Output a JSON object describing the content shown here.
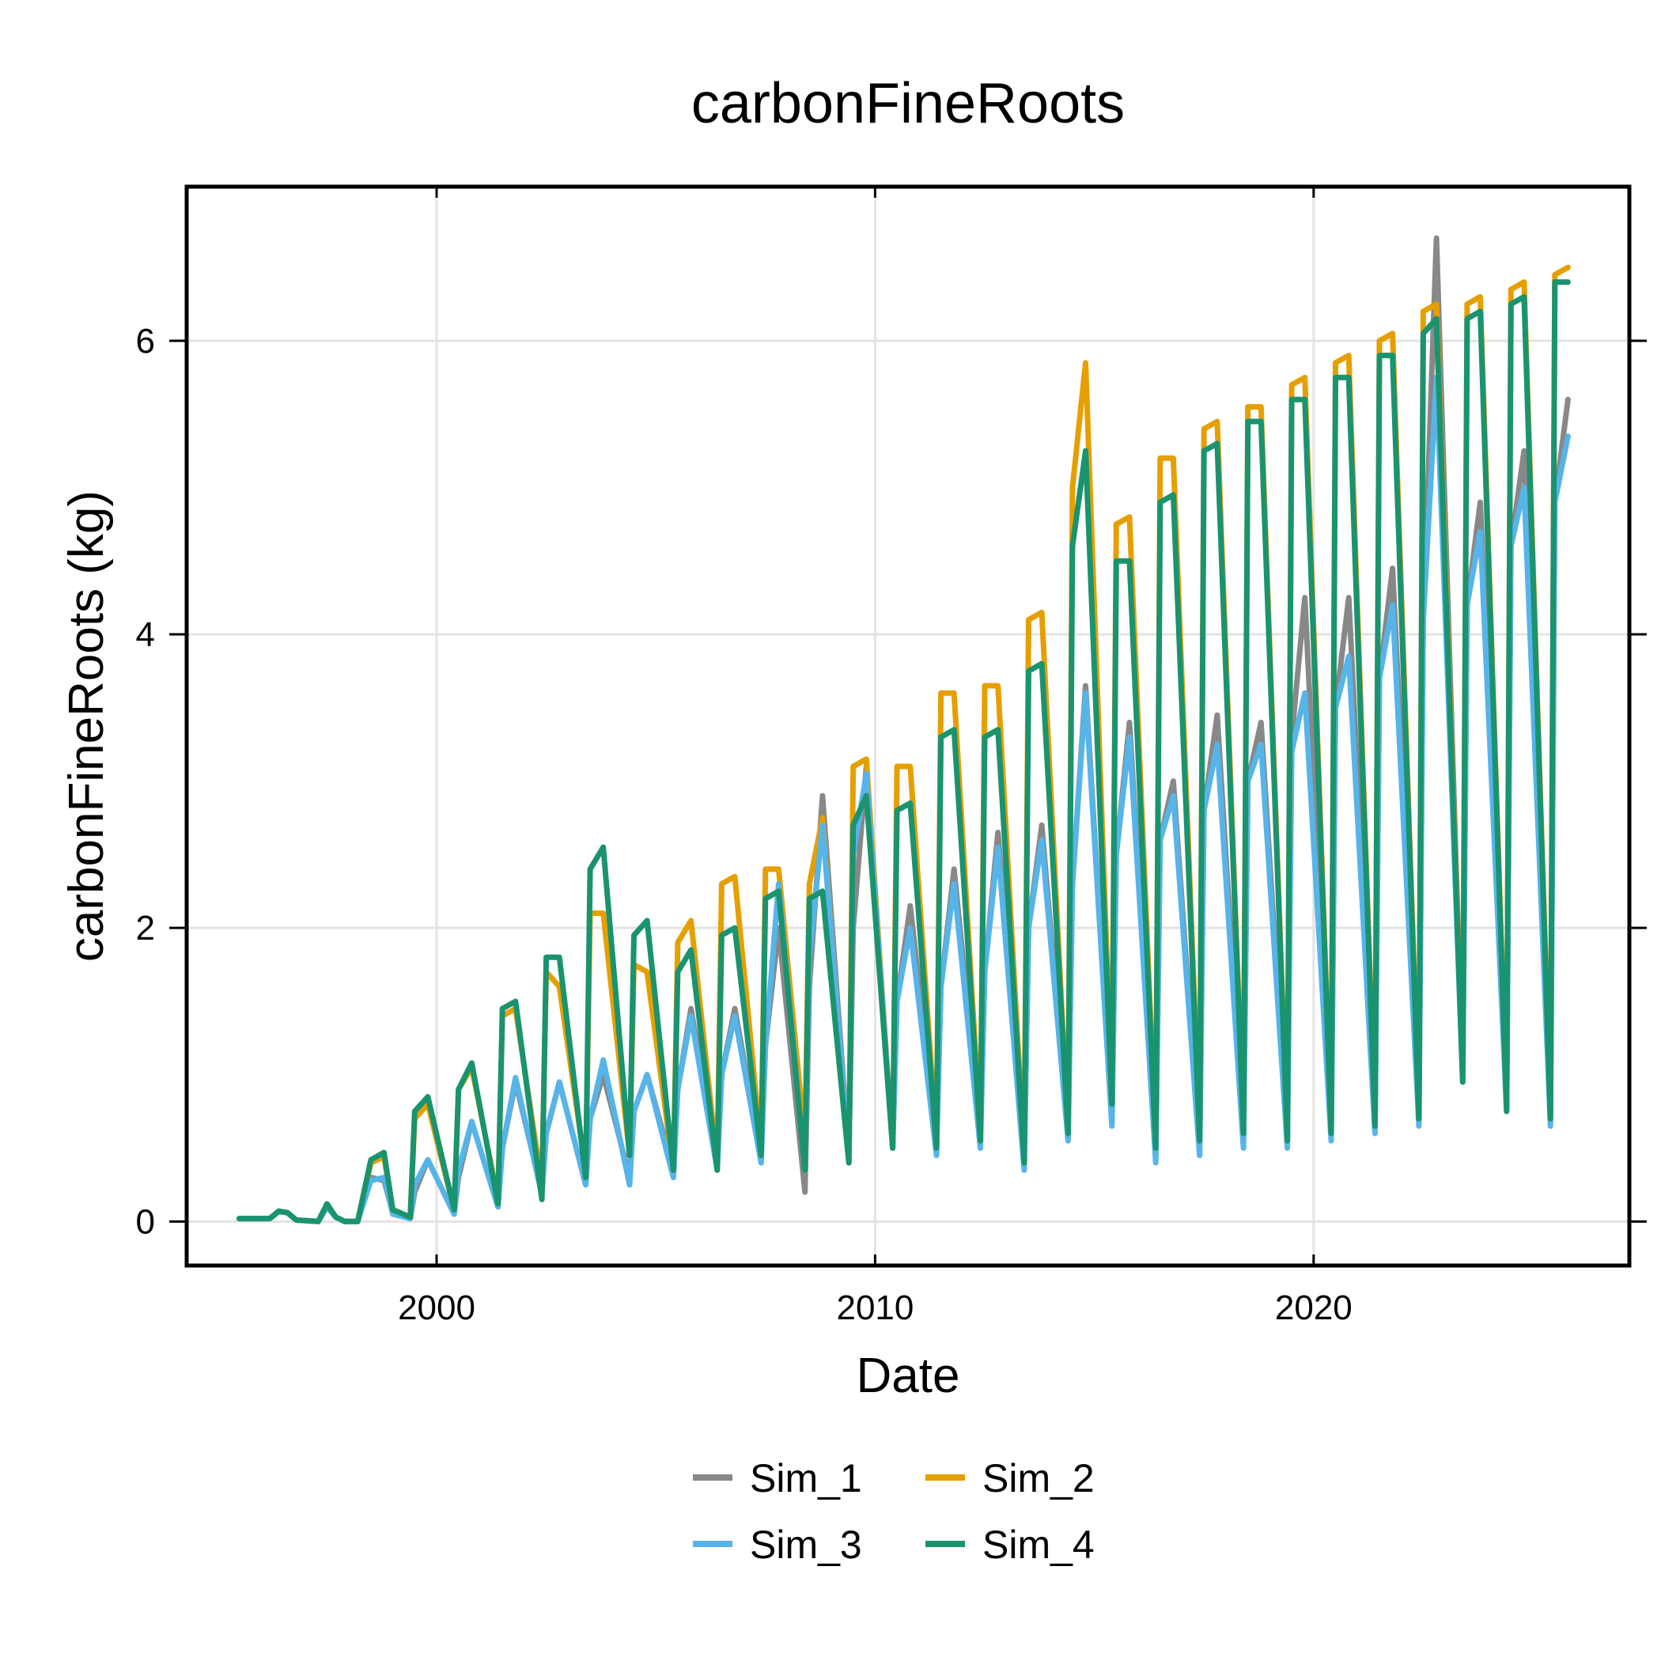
{
  "chart_data": {
    "type": "line",
    "title": "carbonFineRoots",
    "xlabel": "Date",
    "ylabel": "carbonFineRoots (kg)",
    "xlim": [
      1994.3,
      2027.2
    ],
    "ylim": [
      -0.3,
      7.05
    ],
    "xticks": [
      2000,
      2010,
      2020
    ],
    "x_tick_labels": [
      "2000",
      "2010",
      "2020"
    ],
    "yticks": [
      0,
      2,
      4,
      6
    ],
    "y_tick_labels": [
      "0",
      "2",
      "4",
      "6"
    ],
    "grid": true,
    "legend_position": "bottom",
    "series": [
      {
        "name": "Sim_1",
        "color": "#888888",
        "x": [
          1995.5,
          1996.2,
          1996.4,
          1996.6,
          1996.8,
          1997.3,
          1997.5,
          1997.7,
          1997.9,
          1998.2,
          1998.5,
          1998.8,
          1999.0,
          1999.4,
          1999.5,
          1999.8,
          2000.4,
          2000.5,
          2000.8,
          2001.4,
          2001.5,
          2001.8,
          2002.4,
          2002.5,
          2002.8,
          2003.4,
          2003.5,
          2003.8,
          2004.4,
          2004.5,
          2004.8,
          2005.4,
          2005.5,
          2005.8,
          2006.4,
          2006.5,
          2006.8,
          2007.4,
          2007.5,
          2007.8,
          2008.4,
          2008.5,
          2008.8,
          2009.4,
          2009.5,
          2009.8,
          2010.4,
          2010.5,
          2010.8,
          2011.4,
          2011.5,
          2011.8,
          2012.4,
          2012.5,
          2012.8,
          2013.4,
          2013.5,
          2013.8,
          2014.4,
          2014.5,
          2014.8,
          2015.4,
          2015.5,
          2015.8,
          2016.4,
          2016.5,
          2016.8,
          2017.4,
          2017.5,
          2017.8,
          2018.4,
          2018.5,
          2018.8,
          2019.4,
          2019.5,
          2019.8,
          2020.4,
          2020.5,
          2020.8,
          2021.4,
          2021.5,
          2021.8,
          2022.4,
          2022.5,
          2022.8,
          2023.4,
          2023.5,
          2023.8,
          2024.4,
          2024.5,
          2024.8,
          2025.4,
          2025.5,
          2025.8
        ],
        "y": [
          0.02,
          0.02,
          0.07,
          0.06,
          0.01,
          0.0,
          0.1,
          0.03,
          0.0,
          0.0,
          0.3,
          0.28,
          0.06,
          0.02,
          0.2,
          0.42,
          0.05,
          0.3,
          0.68,
          0.1,
          0.5,
          0.95,
          0.2,
          0.6,
          0.95,
          0.25,
          0.7,
          1.0,
          0.3,
          0.75,
          1.0,
          0.35,
          0.9,
          1.45,
          0.4,
          1.0,
          1.45,
          0.45,
          1.2,
          2.0,
          0.2,
          1.6,
          2.9,
          0.45,
          2.0,
          3.1,
          0.5,
          1.5,
          2.15,
          0.55,
          1.6,
          2.4,
          0.6,
          1.7,
          2.65,
          0.45,
          2.0,
          2.7,
          0.6,
          2.3,
          3.65,
          0.7,
          2.5,
          3.4,
          0.45,
          2.6,
          3.0,
          0.5,
          2.8,
          3.45,
          0.55,
          3.0,
          3.4,
          0.55,
          3.3,
          4.25,
          0.6,
          3.5,
          4.25,
          0.65,
          3.7,
          4.45,
          0.7,
          4.1,
          6.7,
          1.0,
          4.2,
          4.9,
          0.8,
          4.6,
          5.25,
          0.7,
          4.9,
          5.6
        ]
      },
      {
        "name": "Sim_2",
        "color": "#E69F00",
        "x": [
          1995.5,
          1996.2,
          1996.4,
          1996.6,
          1996.8,
          1997.3,
          1997.5,
          1997.7,
          1997.9,
          1998.2,
          1998.5,
          1998.8,
          1999.0,
          1999.4,
          1999.5,
          1999.8,
          2000.4,
          2000.5,
          2000.8,
          2001.4,
          2001.5,
          2001.8,
          2002.4,
          2002.5,
          2002.8,
          2003.4,
          2003.5,
          2003.8,
          2004.4,
          2004.5,
          2004.8,
          2005.4,
          2005.5,
          2005.8,
          2006.4,
          2006.5,
          2006.8,
          2007.4,
          2007.5,
          2007.8,
          2008.4,
          2008.5,
          2008.8,
          2009.4,
          2009.5,
          2009.8,
          2010.4,
          2010.5,
          2010.8,
          2011.4,
          2011.5,
          2011.8,
          2012.4,
          2012.5,
          2012.8,
          2013.4,
          2013.5,
          2013.8,
          2014.4,
          2014.5,
          2014.8,
          2015.4,
          2015.5,
          2015.8,
          2016.4,
          2016.5,
          2016.8,
          2017.4,
          2017.5,
          2017.8,
          2018.4,
          2018.5,
          2018.8,
          2019.4,
          2019.5,
          2019.8,
          2020.4,
          2020.5,
          2020.8,
          2021.4,
          2021.5,
          2021.8,
          2022.4,
          2022.5,
          2022.8,
          2023.4,
          2023.5,
          2023.8,
          2024.4,
          2024.5,
          2024.8,
          2025.4,
          2025.5,
          2025.8
        ],
        "y": [
          0.02,
          0.02,
          0.07,
          0.06,
          0.01,
          0.0,
          0.12,
          0.03,
          0.0,
          0.0,
          0.4,
          0.44,
          0.08,
          0.03,
          0.7,
          0.8,
          0.08,
          0.9,
          1.05,
          0.15,
          1.4,
          1.45,
          0.25,
          1.7,
          1.6,
          0.35,
          2.1,
          2.1,
          0.45,
          1.75,
          1.7,
          0.35,
          1.9,
          2.05,
          0.4,
          2.3,
          2.35,
          0.5,
          2.4,
          2.4,
          0.55,
          2.3,
          2.75,
          0.4,
          3.1,
          3.15,
          0.5,
          3.1,
          3.1,
          0.55,
          3.6,
          3.6,
          0.6,
          3.65,
          3.65,
          0.45,
          4.1,
          4.15,
          0.6,
          5.0,
          5.85,
          0.85,
          4.75,
          4.8,
          0.55,
          5.2,
          5.2,
          0.6,
          5.4,
          5.45,
          0.65,
          5.55,
          5.55,
          0.6,
          5.7,
          5.75,
          0.65,
          5.85,
          5.9,
          0.7,
          6.0,
          6.05,
          0.75,
          6.2,
          6.25,
          1.0,
          6.25,
          6.3,
          0.8,
          6.35,
          6.4,
          0.75,
          6.45,
          6.5
        ]
      },
      {
        "name": "Sim_3",
        "color": "#56B4E9",
        "x": [
          1995.5,
          1996.2,
          1996.4,
          1996.6,
          1996.8,
          1997.3,
          1997.5,
          1997.7,
          1997.9,
          1998.2,
          1998.5,
          1998.8,
          1999.0,
          1999.4,
          1999.5,
          1999.8,
          2000.4,
          2000.5,
          2000.8,
          2001.4,
          2001.5,
          2001.8,
          2002.4,
          2002.5,
          2002.8,
          2003.4,
          2003.5,
          2003.8,
          2004.4,
          2004.5,
          2004.8,
          2005.4,
          2005.5,
          2005.8,
          2006.4,
          2006.5,
          2006.8,
          2007.4,
          2007.5,
          2007.8,
          2008.4,
          2008.5,
          2008.8,
          2009.4,
          2009.5,
          2009.8,
          2010.4,
          2010.5,
          2010.8,
          2011.4,
          2011.5,
          2011.8,
          2012.4,
          2012.5,
          2012.8,
          2013.4,
          2013.5,
          2013.8,
          2014.4,
          2014.5,
          2014.8,
          2015.4,
          2015.5,
          2015.8,
          2016.4,
          2016.5,
          2016.8,
          2017.4,
          2017.5,
          2017.8,
          2018.4,
          2018.5,
          2018.8,
          2019.4,
          2019.5,
          2019.8,
          2020.4,
          2020.5,
          2020.8,
          2021.4,
          2021.5,
          2021.8,
          2022.4,
          2022.5,
          2022.8,
          2023.4,
          2023.5,
          2023.8,
          2024.4,
          2024.5,
          2024.8,
          2025.4,
          2025.5,
          2025.8
        ],
        "y": [
          0.02,
          0.02,
          0.07,
          0.06,
          0.01,
          0.0,
          0.1,
          0.03,
          0.0,
          0.0,
          0.28,
          0.3,
          0.05,
          0.02,
          0.25,
          0.42,
          0.05,
          0.35,
          0.68,
          0.1,
          0.5,
          0.98,
          0.18,
          0.6,
          0.95,
          0.25,
          0.7,
          1.1,
          0.25,
          0.75,
          1.0,
          0.3,
          0.9,
          1.4,
          0.35,
          1.0,
          1.4,
          0.4,
          1.2,
          2.3,
          0.35,
          1.8,
          2.7,
          0.45,
          2.5,
          3.05,
          0.5,
          1.5,
          2.0,
          0.45,
          1.6,
          2.3,
          0.5,
          1.7,
          2.55,
          0.35,
          2.0,
          2.6,
          0.55,
          2.3,
          3.6,
          0.65,
          2.5,
          3.3,
          0.4,
          2.6,
          2.9,
          0.45,
          2.8,
          3.25,
          0.5,
          3.0,
          3.25,
          0.5,
          3.2,
          3.6,
          0.55,
          3.5,
          3.85,
          0.6,
          3.7,
          4.2,
          0.65,
          4.1,
          5.75,
          0.95,
          4.2,
          4.7,
          0.75,
          4.6,
          5.0,
          0.65,
          4.9,
          5.35
        ]
      },
      {
        "name": "Sim_4",
        "color": "#1A936F",
        "x": [
          1995.5,
          1996.2,
          1996.4,
          1996.6,
          1996.8,
          1997.3,
          1997.5,
          1997.7,
          1997.9,
          1998.2,
          1998.5,
          1998.8,
          1999.0,
          1999.4,
          1999.5,
          1999.8,
          2000.4,
          2000.5,
          2000.8,
          2001.4,
          2001.5,
          2001.8,
          2002.4,
          2002.5,
          2002.8,
          2003.4,
          2003.5,
          2003.8,
          2004.4,
          2004.5,
          2004.8,
          2005.4,
          2005.5,
          2005.8,
          2006.4,
          2006.5,
          2006.8,
          2007.4,
          2007.5,
          2007.8,
          2008.4,
          2008.5,
          2008.8,
          2009.4,
          2009.5,
          2009.8,
          2010.4,
          2010.5,
          2010.8,
          2011.4,
          2011.5,
          2011.8,
          2012.4,
          2012.5,
          2012.8,
          2013.4,
          2013.5,
          2013.8,
          2014.4,
          2014.5,
          2014.8,
          2015.4,
          2015.5,
          2015.8,
          2016.4,
          2016.5,
          2016.8,
          2017.4,
          2017.5,
          2017.8,
          2018.4,
          2018.5,
          2018.8,
          2019.4,
          2019.5,
          2019.8,
          2020.4,
          2020.5,
          2020.8,
          2021.4,
          2021.5,
          2021.8,
          2022.4,
          2022.5,
          2022.8,
          2023.4,
          2023.5,
          2023.8,
          2024.4,
          2024.5,
          2024.8,
          2025.4,
          2025.5,
          2025.8
        ],
        "y": [
          0.02,
          0.02,
          0.07,
          0.06,
          0.01,
          0.0,
          0.12,
          0.03,
          0.0,
          0.0,
          0.42,
          0.47,
          0.08,
          0.03,
          0.75,
          0.85,
          0.08,
          0.9,
          1.08,
          0.12,
          1.45,
          1.5,
          0.15,
          1.8,
          1.8,
          0.3,
          2.4,
          2.55,
          0.45,
          1.95,
          2.05,
          0.35,
          1.7,
          1.85,
          0.35,
          1.95,
          2.0,
          0.45,
          2.2,
          2.25,
          0.35,
          2.2,
          2.25,
          0.4,
          2.7,
          2.9,
          0.5,
          2.8,
          2.85,
          0.5,
          3.3,
          3.35,
          0.55,
          3.3,
          3.35,
          0.4,
          3.75,
          3.8,
          0.6,
          4.6,
          5.25,
          0.8,
          4.5,
          4.5,
          0.5,
          4.9,
          4.95,
          0.55,
          5.25,
          5.3,
          0.6,
          5.45,
          5.45,
          0.55,
          5.6,
          5.6,
          0.6,
          5.75,
          5.75,
          0.65,
          5.9,
          5.9,
          0.7,
          6.05,
          6.15,
          0.95,
          6.15,
          6.2,
          0.75,
          6.25,
          6.3,
          0.7,
          6.4,
          6.4
        ]
      }
    ]
  }
}
